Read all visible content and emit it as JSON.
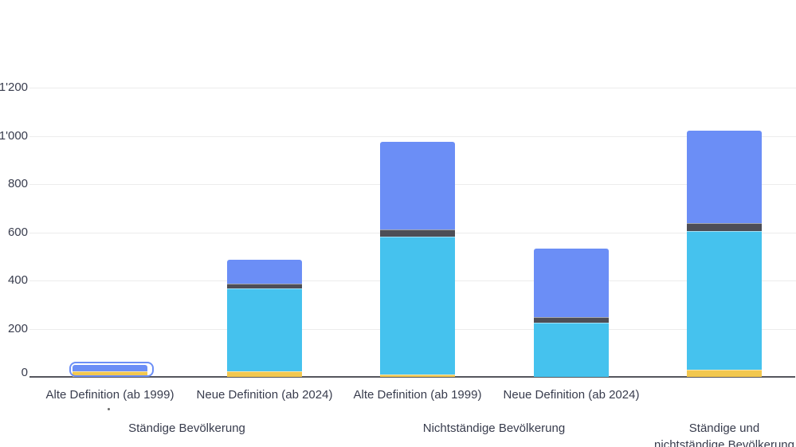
{
  "chart_data": {
    "type": "bar",
    "stacked": true,
    "title": "",
    "x_categories": [
      "Alte Definition (ab 1999)",
      "Neue Definition (ab 2024)",
      "Alte Definition (ab 1999)",
      "Neue Definition (ab 2024)",
      ""
    ],
    "groups": [
      {
        "label_lines": [
          "Ständige Bevölkerung"
        ]
      },
      {
        "label_lines": [
          "Nichtständige Bevölkerung"
        ]
      },
      {
        "label_lines": [
          "Ständige und",
          "nichtständige Bevölkerung"
        ]
      }
    ],
    "series": [
      {
        "name": "yellow-segment",
        "color": "#F2C74E",
        "values": [
          23,
          23,
          10,
          0,
          30
        ]
      },
      {
        "name": "cyan-segment",
        "color": "#45C2EE",
        "values": [
          0,
          344,
          572,
          225,
          575
        ]
      },
      {
        "name": "dark-gray-segment",
        "color": "#4D4E56",
        "values": [
          0,
          20,
          30,
          23,
          33
        ]
      },
      {
        "name": "blue-segment",
        "color": "#6B8EF6",
        "values": [
          27,
          98,
          363,
          285,
          382
        ]
      }
    ],
    "bar_totals": [
      50,
      485,
      975,
      533,
      1020
    ],
    "y_ticks": [
      {
        "value": 0,
        "label": "0"
      },
      {
        "value": 200,
        "label": "200"
      },
      {
        "value": 400,
        "label": "400"
      },
      {
        "value": 600,
        "label": "600"
      },
      {
        "value": 800,
        "label": "800"
      },
      {
        "value": 1000,
        "label": "1'000"
      },
      {
        "value": 1200,
        "label": "1'200"
      }
    ],
    "ylim": [
      0,
      1200
    ],
    "grid": true,
    "legend": "none",
    "highlighted_segment": {
      "bar_index": 0,
      "series": "blue-segment"
    }
  },
  "colors": {
    "background": "#FFFFFF",
    "gridline": "#ECECEC",
    "axis_line": "#55565E",
    "text": "#383C4D",
    "highlight_ring": "#6C8FF6",
    "footnote_dot": "#6B6B6B"
  }
}
